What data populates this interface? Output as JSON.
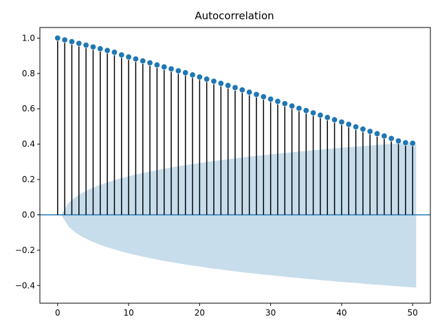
{
  "chart_data": {
    "type": "scatter",
    "subtype": "stem",
    "title": "Autocorrelation",
    "xlabel": "",
    "ylabel": "",
    "xlim": [
      -2.5,
      52.5
    ],
    "ylim": [
      -0.5,
      1.06
    ],
    "xticks": [
      0,
      10,
      20,
      30,
      40,
      50
    ],
    "yticks": [
      -0.4,
      -0.2,
      0.0,
      0.2,
      0.4,
      0.6,
      0.8,
      1.0
    ],
    "xtick_labels": [
      "0",
      "10",
      "20",
      "30",
      "40",
      "50"
    ],
    "ytick_labels": [
      "−0.4",
      "−0.2",
      "0.0",
      "0.2",
      "0.4",
      "0.6",
      "0.8",
      "1.0"
    ],
    "grid": false,
    "lags": [
      0,
      1,
      2,
      3,
      4,
      5,
      6,
      7,
      8,
      9,
      10,
      11,
      12,
      13,
      14,
      15,
      16,
      17,
      18,
      19,
      20,
      21,
      22,
      23,
      24,
      25,
      26,
      27,
      28,
      29,
      30,
      31,
      32,
      33,
      34,
      35,
      36,
      37,
      38,
      39,
      40,
      41,
      42,
      43,
      44,
      45,
      46,
      47,
      48,
      49,
      50
    ],
    "values": [
      1.0,
      0.99,
      0.98,
      0.97,
      0.96,
      0.95,
      0.94,
      0.93,
      0.92,
      0.905,
      0.893,
      0.882,
      0.871,
      0.86,
      0.848,
      0.837,
      0.826,
      0.815,
      0.804,
      0.792,
      0.78,
      0.768,
      0.756,
      0.744,
      0.732,
      0.72,
      0.707,
      0.694,
      0.681,
      0.668,
      0.655,
      0.642,
      0.629,
      0.616,
      0.603,
      0.59,
      0.577,
      0.564,
      0.551,
      0.538,
      0.525,
      0.512,
      0.498,
      0.485,
      0.472,
      0.459,
      0.446,
      0.432,
      0.418,
      0.408,
      0.405
    ],
    "confint_upper": [
      0.0,
      0.065,
      0.1,
      0.125,
      0.145,
      0.162,
      0.177,
      0.19,
      0.202,
      0.213,
      0.223,
      0.232,
      0.241,
      0.249,
      0.257,
      0.264,
      0.271,
      0.278,
      0.284,
      0.29,
      0.296,
      0.302,
      0.307,
      0.312,
      0.317,
      0.322,
      0.327,
      0.331,
      0.336,
      0.34,
      0.344,
      0.348,
      0.352,
      0.356,
      0.36,
      0.364,
      0.367,
      0.371,
      0.374,
      0.378,
      0.381,
      0.384,
      0.387,
      0.391,
      0.394,
      0.397,
      0.4,
      0.403,
      0.406,
      0.409,
      0.412
    ],
    "colors": {
      "marker": "#1f77b4",
      "stem": "#000000",
      "band": "#1f77b4",
      "zero_line": "#1f77b4"
    }
  }
}
